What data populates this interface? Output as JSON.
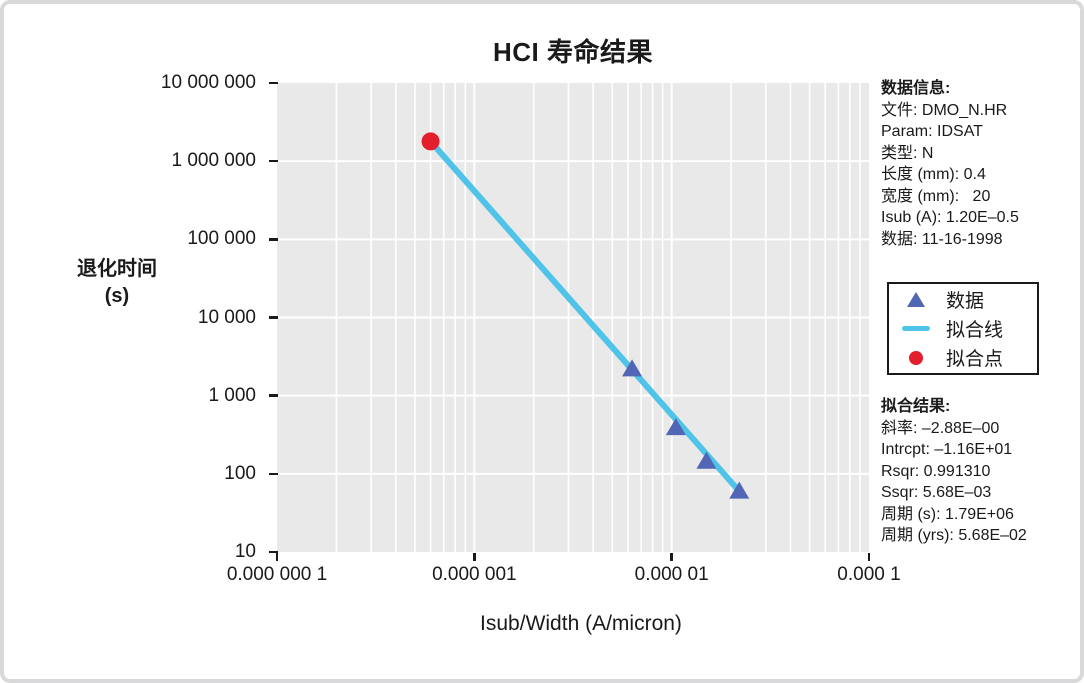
{
  "title": "HCI 寿命结果",
  "info_panel": {
    "header": "数据信息:",
    "lines": [
      "文件: DMO_N.HR",
      "Param: IDSAT",
      "类型: N",
      "长度 (mm): 0.4",
      "宽度 (mm):   20",
      "Isub (A): 1.20E–0.5",
      "数据: 11-16-1998"
    ]
  },
  "legend": {
    "items": [
      {
        "label": "数据",
        "marker": "triangle",
        "color": "#5166b4"
      },
      {
        "label": "拟合线",
        "marker": "line",
        "color": "#4fc3e8"
      },
      {
        "label": "拟合点",
        "marker": "circle",
        "color": "#e31e2d"
      }
    ]
  },
  "fit_panel": {
    "header": "拟合结果:",
    "lines": [
      "斜率: –2.88E–00",
      "Intrcpt: –1.16E+01",
      "Rsqr: 0.991310",
      "Ssqr: 5.68E–03",
      "周期 (s): 1.79E+06",
      "周期 (yrs): 5.68E–02"
    ]
  },
  "chart_data": {
    "type": "scatter",
    "title": "HCI 寿命结果",
    "xlabel": "Isub/Width (A/micron)",
    "ylabel": "退化时间 (s)",
    "ylabel_lines": [
      "退化时间",
      "(s)"
    ],
    "x_scale": "log",
    "y_scale": "log",
    "xlim": [
      1e-07,
      0.0001
    ],
    "ylim": [
      10,
      10000000
    ],
    "x_ticks": [
      {
        "value": 1e-07,
        "label": "0.000 000 1"
      },
      {
        "value": 1e-06,
        "label": "0.000 001"
      },
      {
        "value": 1e-05,
        "label": "0.000 01"
      },
      {
        "value": 0.0001,
        "label": "0.000 1"
      }
    ],
    "y_ticks": [
      {
        "value": 10000000,
        "label": "10 000 000"
      },
      {
        "value": 1000000,
        "label": "1 000 000"
      },
      {
        "value": 100000,
        "label": "100 000"
      },
      {
        "value": 10000,
        "label": "10 000"
      },
      {
        "value": 1000,
        "label": "1 000"
      },
      {
        "value": 100,
        "label": "100"
      },
      {
        "value": 10,
        "label": "10"
      }
    ],
    "plot_bg": "#e9e9e9",
    "grid": {
      "color": "#ffffff",
      "x_minor": true,
      "y_minor": false,
      "major_width": 2,
      "minor_width": 1.6
    },
    "legend_position": "right",
    "series": [
      {
        "name": "数据",
        "type": "scatter",
        "marker": "triangle",
        "color": "#5166b4",
        "points": [
          [
            6.3e-06,
            2200
          ],
          [
            1.05e-05,
            390
          ],
          [
            1.5e-05,
            145
          ],
          [
            2.2e-05,
            60
          ]
        ]
      },
      {
        "name": "拟合线",
        "type": "line",
        "color": "#4fc3e8",
        "line_width": 6,
        "points": [
          [
            6e-07,
            1790000
          ],
          [
            2.2e-05,
            60
          ]
        ]
      },
      {
        "name": "拟合点",
        "type": "scatter",
        "marker": "circle",
        "color": "#e31e2d",
        "points": [
          [
            6e-07,
            1790000
          ]
        ]
      }
    ]
  }
}
